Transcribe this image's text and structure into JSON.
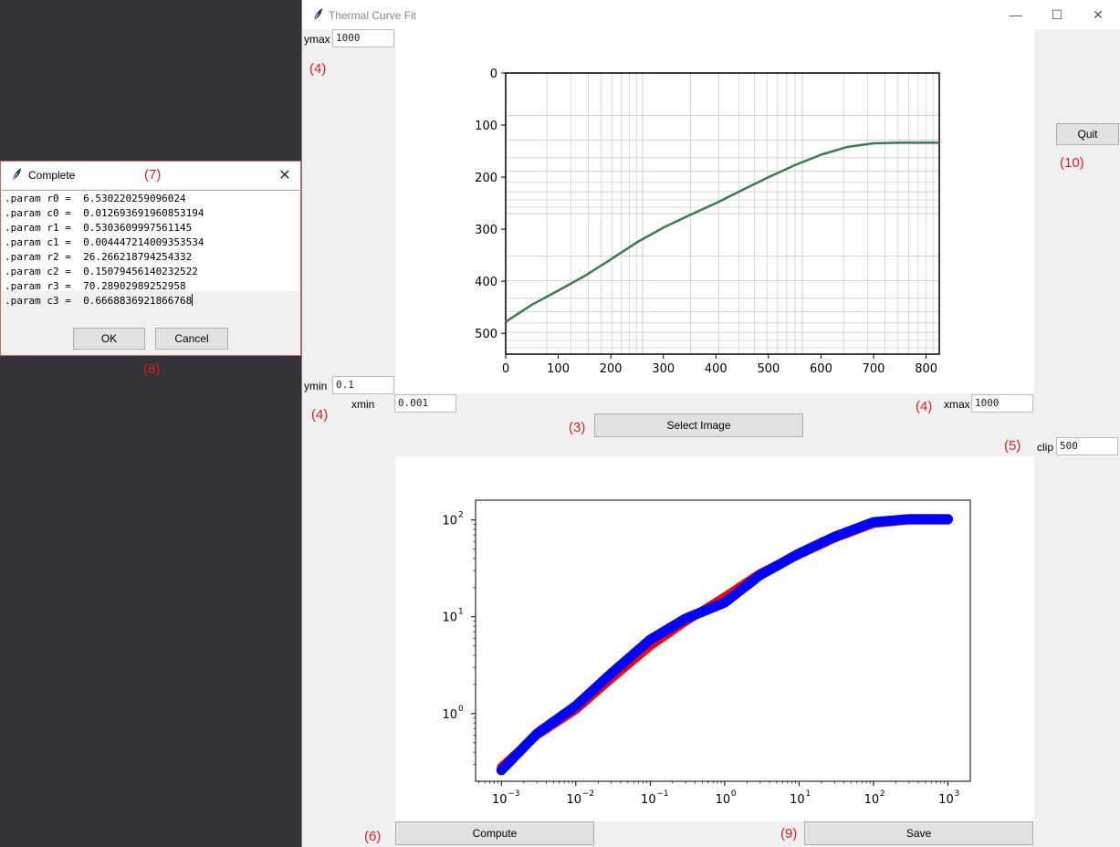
{
  "window": {
    "title": "Thermal Curve Fit",
    "icon": "feather-icon",
    "controls": [
      "minimize-icon",
      "maximize-icon",
      "close-icon"
    ]
  },
  "controls": {
    "ymax_label": "ymax",
    "ymax_value": "1000",
    "ymin_label": "ymin",
    "ymin_value": "0.1",
    "xmin_label": "xmin",
    "xmin_value": "0.001",
    "xmax_label": "xmax",
    "xmax_value": "1000",
    "clip_label": "clip",
    "clip_value": "500",
    "select_image_label": "Select Image",
    "quit_label": "Quit",
    "compute_label": "Compute",
    "save_label": "Save"
  },
  "annotations": {
    "ymax": "(4)",
    "ymin": "(4)",
    "xmax": "(4)",
    "select": "(3)",
    "clip": "(5)",
    "compute": "(6)",
    "dialog_title": "(7)",
    "dialog_buttons": "(8)",
    "save": "(9)",
    "quit": "(10)"
  },
  "dialog": {
    "title": "Complete",
    "lines": [
      ".param r0 =  6.530220259096024",
      ".param c0 =  0.012693691960853194",
      ".param r1 =  0.5303609997561145",
      ".param c1 =  0.004447214009353534",
      ".param r2 =  26.266218794254332",
      ".param c2 =  0.15079456140232522",
      ".param r3 =  70.28902989252958",
      ".param c3 =  0.6668836921866768"
    ],
    "ok_label": "OK",
    "cancel_label": "Cancel"
  },
  "colors": {
    "curve_green": "#3b7d4a",
    "fit_red": "#ff0000",
    "data_blue": "#0000ff",
    "anno_red": "#e02020"
  },
  "chart_data": [
    {
      "type": "line",
      "x_ticks": [
        "0",
        "100",
        "200",
        "300",
        "400",
        "500",
        "600",
        "700",
        "800"
      ],
      "y_ticks": [
        "0",
        "100",
        "200",
        "300",
        "400",
        "500"
      ],
      "xlim": [
        0,
        825
      ],
      "ylim": [
        540,
        0
      ],
      "y_inverted": true,
      "grid": "log-paper background",
      "series": [
        {
          "color": "#3b7d4a",
          "x": [
            0,
            50,
            100,
            150,
            200,
            250,
            300,
            350,
            400,
            450,
            500,
            550,
            600,
            650,
            700,
            750,
            825
          ],
          "y": [
            478,
            445,
            418,
            390,
            358,
            325,
            297,
            273,
            250,
            225,
            200,
            177,
            157,
            142,
            135,
            134,
            134
          ]
        }
      ]
    },
    {
      "type": "scatter",
      "x_scale": "log",
      "y_scale": "log",
      "x_tick_exponents": [
        -3,
        -2,
        -1,
        0,
        1,
        2,
        3
      ],
      "y_tick_exponents": [
        0,
        1,
        2
      ],
      "xlim": [
        0.00045,
        2000
      ],
      "ylim": [
        0.2,
        160
      ],
      "series": [
        {
          "color": "#ff0000",
          "x": [
            0.001,
            0.003,
            0.01,
            0.03,
            0.1,
            0.3,
            1,
            3,
            10,
            30,
            100,
            300,
            1000
          ],
          "y": [
            0.28,
            0.6,
            1.1,
            2.3,
            5.0,
            9.0,
            16,
            28,
            44,
            65,
            92,
            100,
            100
          ]
        },
        {
          "color": "#0000ff",
          "x": [
            0.001,
            0.003,
            0.01,
            0.03,
            0.1,
            0.3,
            1,
            3,
            10,
            30,
            100,
            300,
            1000
          ],
          "y": [
            0.26,
            0.62,
            1.2,
            2.6,
            5.8,
            9.6,
            14,
            27,
            45,
            67,
            95,
            102,
            102
          ]
        }
      ]
    }
  ]
}
